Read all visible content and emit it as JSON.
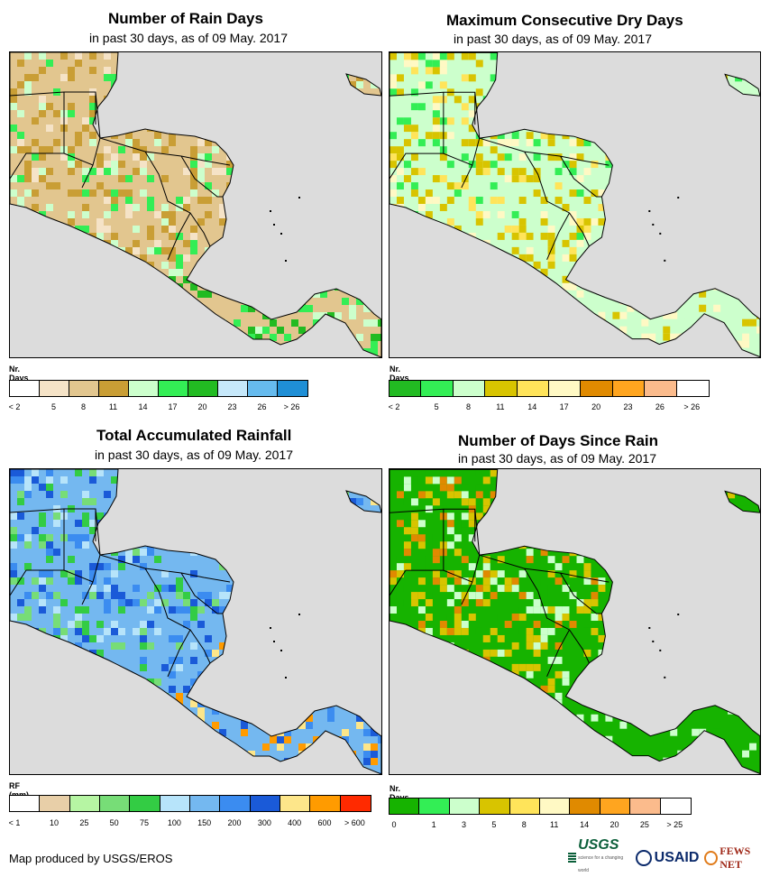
{
  "panels": [
    {
      "id": "rain-days",
      "title": "Number of Rain Days",
      "subtitle": "in past 30 days, as of 09 May. 2017",
      "legend": {
        "unit": "Nr. Days",
        "colors": [
          "#ffffff",
          "#f5e3c7",
          "#e2c68f",
          "#c99e35",
          "#ccffcc",
          "#33ee55",
          "#22bb22",
          "#c6e8fa",
          "#66bbee",
          "#1f8fd6"
        ],
        "ticks": [
          "< 2",
          "5",
          "8",
          "11",
          "14",
          "17",
          "20",
          "23",
          "26",
          "> 26"
        ]
      }
    },
    {
      "id": "dry-days",
      "title": "Maximum Consecutive Dry Days",
      "subtitle": "in past 30 days, as of 09 May. 2017",
      "legend": {
        "unit": "Nr. Days",
        "colors": [
          "#22bb22",
          "#33ee55",
          "#ccffcc",
          "#d8c400",
          "#ffe45a",
          "#fff9c4",
          "#e08a00",
          "#ffa51f",
          "#fbbb8c",
          "#ffffff"
        ],
        "ticks": [
          "< 2",
          "5",
          "8",
          "11",
          "14",
          "17",
          "20",
          "23",
          "26",
          "> 26"
        ]
      }
    },
    {
      "id": "rainfall",
      "title": "Total Accumulated Rainfall",
      "subtitle": "in past 30 days, as of 09 May. 2017",
      "legend": {
        "unit": "RF (mm)",
        "colors": [
          "#ffffff",
          "#e8cfa8",
          "#b6f5a3",
          "#77dd77",
          "#33cc44",
          "#b7e4fa",
          "#74b8f0",
          "#3b8cf0",
          "#1a5ad8",
          "#fde68a",
          "#ff9b00",
          "#ff2a00"
        ],
        "ticks": [
          "< 1",
          "10",
          "25",
          "50",
          "75",
          "100",
          "150",
          "200",
          "300",
          "400",
          "600",
          "> 600"
        ]
      }
    },
    {
      "id": "days-since",
      "title": "Number of Days Since Rain",
      "subtitle": "in past 30 days, as of 09 May. 2017",
      "legend": {
        "unit": "Nr. Days",
        "colors": [
          "#16b300",
          "#33ee55",
          "#ccffcc",
          "#d8c400",
          "#ffe45a",
          "#fff9c4",
          "#e08a00",
          "#ffa51f",
          "#fbbb8c",
          "#ffffff"
        ],
        "ticks": [
          "0",
          "1",
          "3",
          "5",
          "8",
          "11",
          "14",
          "20",
          "25",
          "> 25"
        ]
      }
    }
  ],
  "footer": "Map produced by USGS/EROS",
  "logos": {
    "usgs": "USGS",
    "usgs_sub": "science for a changing world",
    "usaid": "USAID",
    "fews": "FEWS NET"
  }
}
